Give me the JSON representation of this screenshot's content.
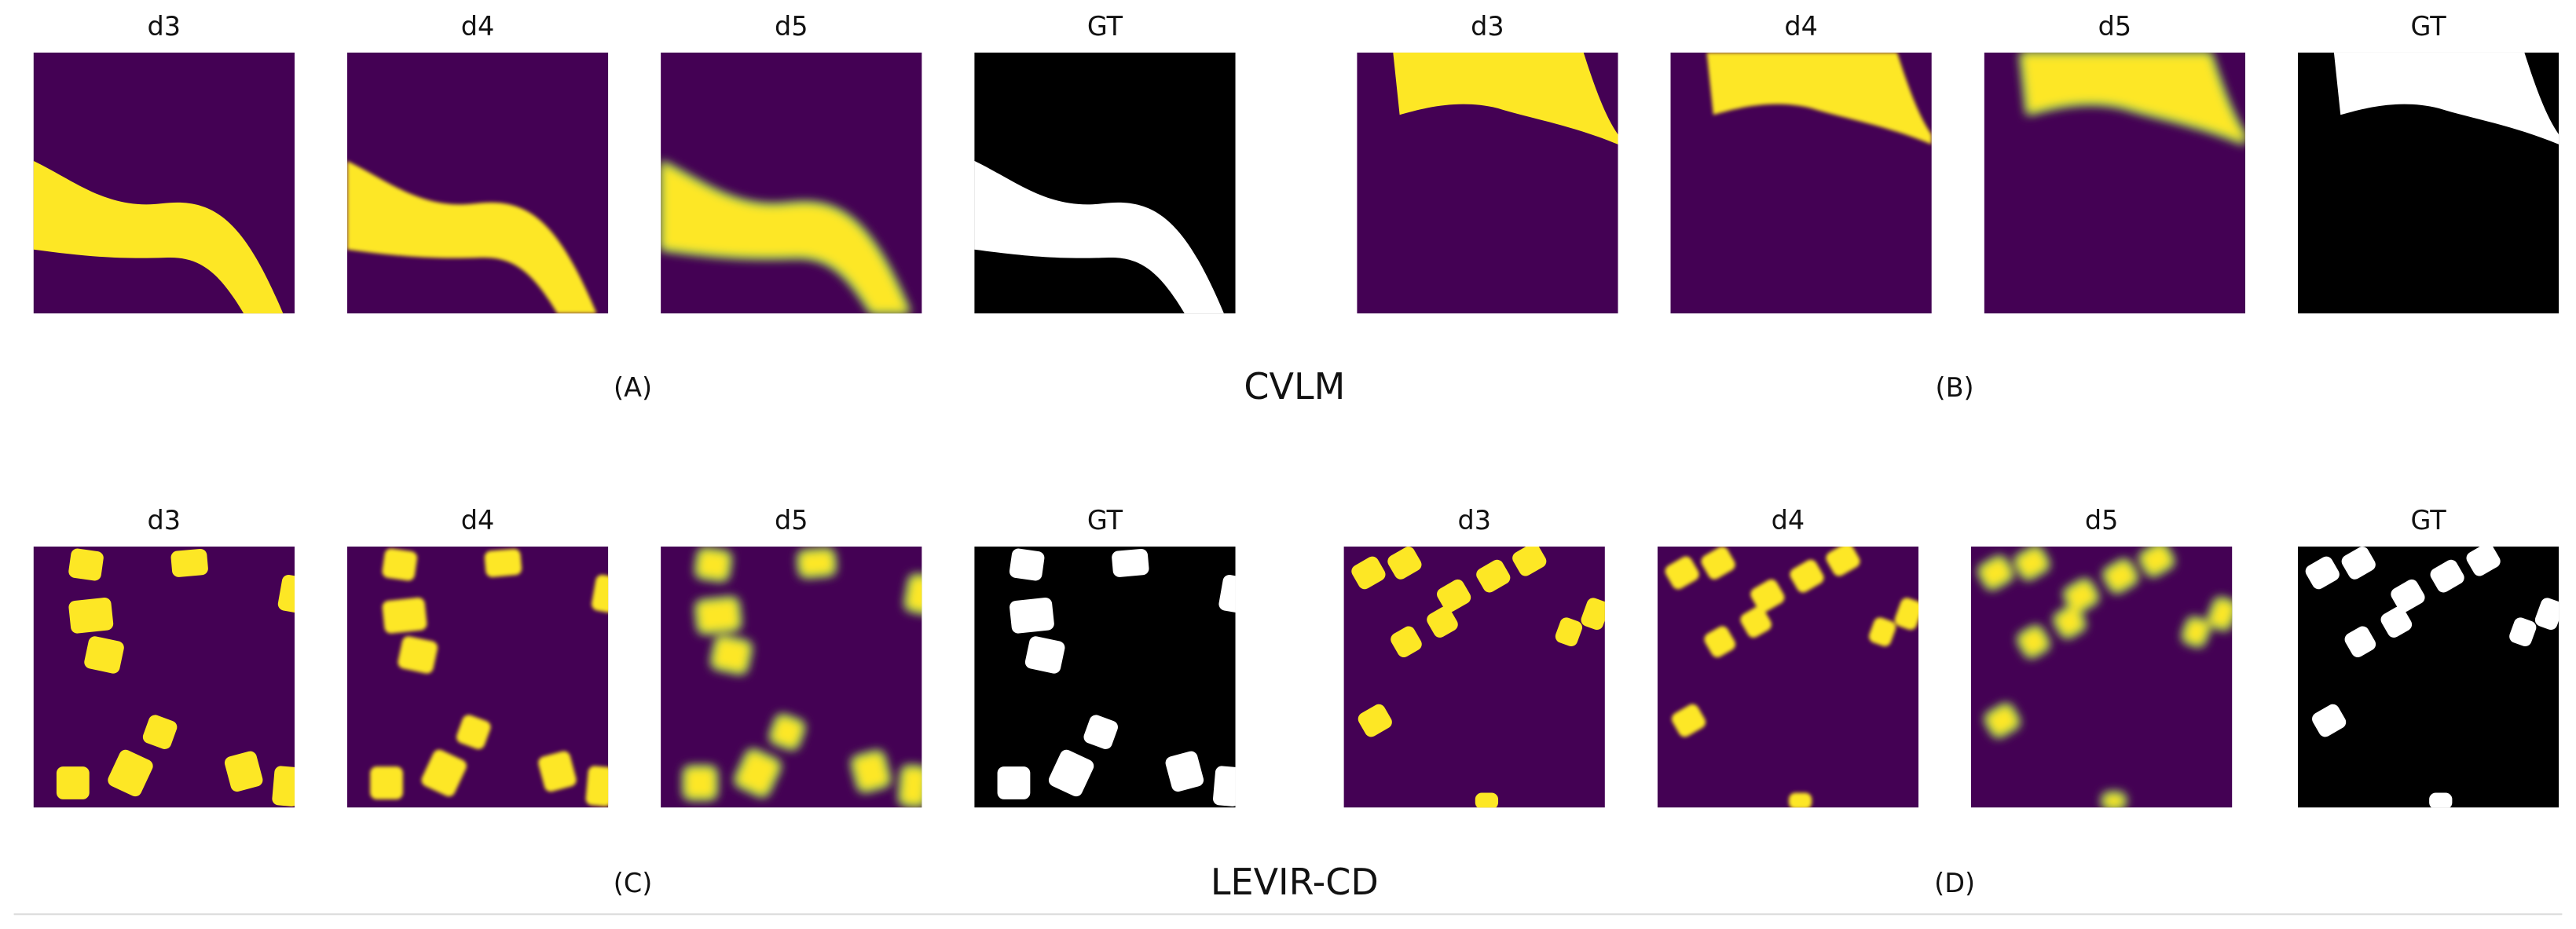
{
  "rows": [
    {
      "dataset": "CVLM",
      "groups": [
        {
          "label": "(A)",
          "panels": [
            "d3",
            "d4",
            "d5",
            "GT"
          ]
        },
        {
          "label": "(B)",
          "panels": [
            "d3",
            "d4",
            "d5",
            "GT"
          ]
        }
      ]
    },
    {
      "dataset": "LEVIR-CD",
      "groups": [
        {
          "label": "(C)",
          "panels": [
            "d3",
            "d4",
            "d5",
            "GT"
          ]
        },
        {
          "label": "(D)",
          "panels": [
            "d3",
            "d4",
            "d5",
            "GT"
          ]
        }
      ]
    }
  ]
}
